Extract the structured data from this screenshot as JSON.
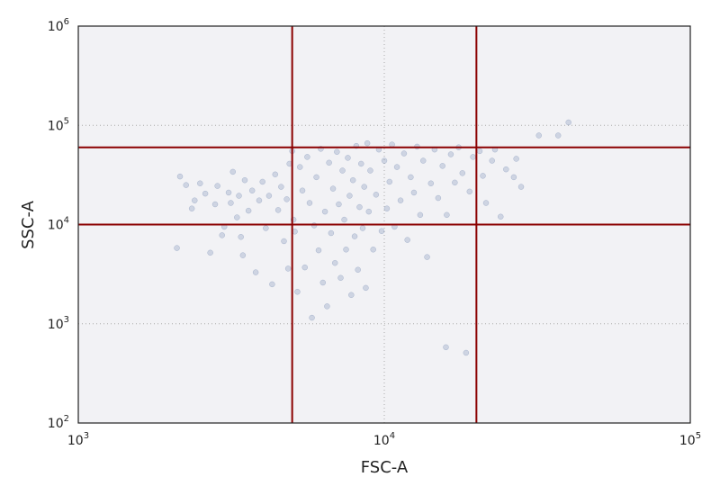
{
  "chart_data": {
    "type": "scatter",
    "title": "",
    "xlabel": "FSC-A",
    "ylabel": "SSC-A",
    "xscale": "log",
    "yscale": "log",
    "xlim": [
      1000,
      100000
    ],
    "ylim": [
      100,
      1000000
    ],
    "x_ticks": [
      {
        "base": "10",
        "exp": "3",
        "value": 1000
      },
      {
        "base": "10",
        "exp": "4",
        "value": 10000
      },
      {
        "base": "10",
        "exp": "5",
        "value": 100000
      }
    ],
    "y_ticks": [
      {
        "base": "10",
        "exp": "2",
        "value": 100
      },
      {
        "base": "10",
        "exp": "3",
        "value": 1000
      },
      {
        "base": "10",
        "exp": "4",
        "value": 10000
      },
      {
        "base": "10",
        "exp": "5",
        "value": 100000
      },
      {
        "base": "10",
        "exp": "6",
        "value": 1000000
      }
    ],
    "grid": true,
    "background_color": "#f2f2f5",
    "point_color": "#3f5f96",
    "threshold_color": "#8b0000",
    "gates": {
      "vertical_x": [
        5000,
        20000
      ],
      "horizontal_y": [
        10000,
        60000
      ]
    },
    "series": [
      {
        "points": [
          [
            2100,
            5800
          ],
          [
            2150,
            30500
          ],
          [
            2250,
            25000
          ],
          [
            2350,
            14500
          ],
          [
            2400,
            17500
          ],
          [
            2500,
            26000
          ],
          [
            2600,
            20500
          ],
          [
            2700,
            5200
          ],
          [
            2800,
            16000
          ],
          [
            2850,
            24500
          ],
          [
            2950,
            7800
          ],
          [
            3000,
            9500
          ],
          [
            3100,
            21000
          ],
          [
            3150,
            16500
          ],
          [
            3200,
            34000
          ],
          [
            3300,
            11800
          ],
          [
            3350,
            19500
          ],
          [
            3400,
            7500
          ],
          [
            3450,
            4900
          ],
          [
            3500,
            28000
          ],
          [
            3600,
            13800
          ],
          [
            3700,
            22000
          ],
          [
            3800,
            3300
          ],
          [
            3900,
            17500
          ],
          [
            4000,
            27000
          ],
          [
            4100,
            9200
          ],
          [
            4200,
            19500
          ],
          [
            4300,
            2500
          ],
          [
            4400,
            32000
          ],
          [
            4500,
            14000
          ],
          [
            4600,
            24000
          ],
          [
            4700,
            6800
          ],
          [
            4800,
            18000
          ],
          [
            4850,
            3600
          ],
          [
            4900,
            41000
          ],
          [
            5000,
            55000
          ],
          [
            5050,
            11200
          ],
          [
            5100,
            8500
          ],
          [
            5200,
            2100
          ],
          [
            5300,
            38000
          ],
          [
            5400,
            22000
          ],
          [
            5500,
            3700
          ],
          [
            5600,
            48000
          ],
          [
            5700,
            16500
          ],
          [
            5800,
            1150
          ],
          [
            5900,
            9800
          ],
          [
            6000,
            30000
          ],
          [
            6100,
            5500
          ],
          [
            6200,
            58000
          ],
          [
            6300,
            2600
          ],
          [
            6400,
            13500
          ],
          [
            6500,
            1500
          ],
          [
            6600,
            42000
          ],
          [
            6700,
            8200
          ],
          [
            6800,
            23000
          ],
          [
            6900,
            4100
          ],
          [
            7000,
            54000
          ],
          [
            7100,
            16000
          ],
          [
            7200,
            2900
          ],
          [
            7300,
            35000
          ],
          [
            7400,
            11200
          ],
          [
            7500,
            5600
          ],
          [
            7600,
            47000
          ],
          [
            7700,
            19500
          ],
          [
            7800,
            1950
          ],
          [
            7900,
            28000
          ],
          [
            8000,
            7600
          ],
          [
            8100,
            62000
          ],
          [
            8200,
            3500
          ],
          [
            8300,
            15000
          ],
          [
            8400,
            41000
          ],
          [
            8500,
            9200
          ],
          [
            8600,
            24000
          ],
          [
            8700,
            2300
          ],
          [
            8800,
            66000
          ],
          [
            8900,
            13500
          ],
          [
            9000,
            35000
          ],
          [
            9200,
            5600
          ],
          [
            9400,
            20000
          ],
          [
            9600,
            57000
          ],
          [
            9800,
            8600
          ],
          [
            10000,
            44000
          ],
          [
            10200,
            14500
          ],
          [
            10400,
            27000
          ],
          [
            10600,
            64000
          ],
          [
            10800,
            9500
          ],
          [
            11000,
            38000
          ],
          [
            11300,
            17500
          ],
          [
            11600,
            52000
          ],
          [
            11900,
            7000
          ],
          [
            12200,
            30000
          ],
          [
            12500,
            21000
          ],
          [
            12800,
            61000
          ],
          [
            13100,
            12500
          ],
          [
            13400,
            44000
          ],
          [
            13800,
            4700
          ],
          [
            14200,
            26000
          ],
          [
            14600,
            57000
          ],
          [
            15000,
            18500
          ],
          [
            15500,
            39000
          ],
          [
            15900,
            580
          ],
          [
            16000,
            12500
          ],
          [
            16500,
            51000
          ],
          [
            17000,
            26500
          ],
          [
            17500,
            60000
          ],
          [
            18000,
            33000
          ],
          [
            18500,
            510
          ],
          [
            19000,
            21500
          ],
          [
            19500,
            48000
          ],
          [
            20500,
            55000
          ],
          [
            21000,
            31000
          ],
          [
            21500,
            16500
          ],
          [
            22500,
            44000
          ],
          [
            23000,
            57000
          ],
          [
            24000,
            12000
          ],
          [
            25000,
            36000
          ],
          [
            26500,
            30000
          ],
          [
            27000,
            46000
          ],
          [
            28000,
            24000
          ],
          [
            32000,
            79000
          ],
          [
            37000,
            79000
          ],
          [
            40000,
            107000
          ]
        ]
      }
    ]
  }
}
